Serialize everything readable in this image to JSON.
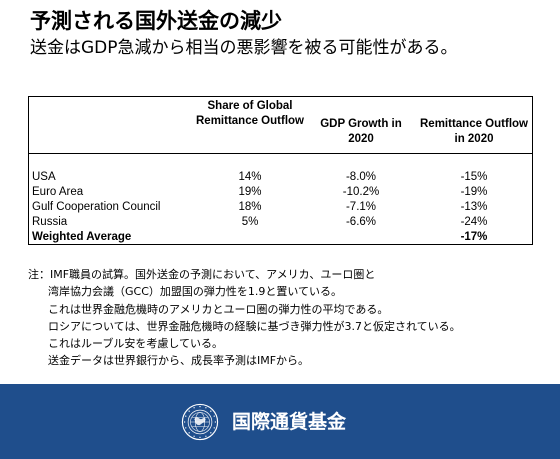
{
  "header": {
    "title": "予測される国外送金の減少",
    "subtitle": "送金はGDP急減から相当の悪影響を被る可能性がある。"
  },
  "table": {
    "columns": [
      "",
      "Share of Global Remittance Outflow",
      "GDP Growth in 2020",
      "Remittance Outflow in 2020"
    ],
    "rows": [
      {
        "name": "USA",
        "share": "14%",
        "gdp": "-8.0%",
        "outflow": "-15%"
      },
      {
        "name": "Euro Area",
        "share": "19%",
        "gdp": "-10.2%",
        "outflow": "-19%"
      },
      {
        "name": "Gulf Cooperation Council",
        "share": "18%",
        "gdp": "-7.1%",
        "outflow": "-13%"
      },
      {
        "name": "Russia",
        "share": "5%",
        "gdp": "-6.6%",
        "outflow": "-24%"
      }
    ],
    "weighted_average": {
      "name": "Weighted Average",
      "outflow": "-17%"
    }
  },
  "notes": [
    "注：IMF職員の試算。国外送金の予測において、アメリカ、ユーロ圏と",
    "湾岸協力会議（GCC）加盟国の弾力性を1.9と置いている。",
    "これは世界金融危機時のアメリカとユーロ圏の弾力性の平均である。",
    "ロシアについては、世界金融危機時の経験に基づき弾力性が3.7と仮定されている。",
    "これはルーブル安を考慮している。",
    "送金データは世界銀行から、成長率予測はIMFから。"
  ],
  "footer": {
    "org_name": "国際通貨基金",
    "logo_icon": "imf-seal-icon",
    "background_color": "#1f4e8c"
  }
}
